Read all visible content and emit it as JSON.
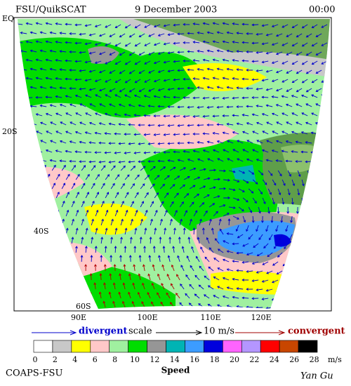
{
  "header": {
    "title": "FSU/QuikSCAT",
    "date": "9 December 2003",
    "time": "00:00"
  },
  "map": {
    "lat_labels": [
      "EQ",
      "20S",
      "40S",
      "60S"
    ],
    "lon_labels": [
      "90E",
      "100E",
      "110E",
      "120E"
    ]
  },
  "legend": {
    "divergent": "divergent",
    "scale": "scale",
    "scale_value": "10 m/s",
    "convergent": "convergent"
  },
  "colorbar": {
    "labels": [
      0,
      2,
      4,
      6,
      8,
      10,
      12,
      14,
      16,
      18,
      20,
      22,
      24,
      26,
      28
    ],
    "colors": [
      "#ffffff",
      "#c8c8c8",
      "#ffff00",
      "#ffc8c8",
      "#a0f0a0",
      "#00dd00",
      "#969696",
      "#00b4b4",
      "#3c9cff",
      "#0000dd",
      "#ff64ff",
      "#b496ff",
      "#ff0000",
      "#c84600",
      "#000000"
    ],
    "unit": "m/s",
    "title": "Speed"
  },
  "footer": {
    "credit": "COAPS-FSU",
    "author": "Yan Gu"
  }
}
